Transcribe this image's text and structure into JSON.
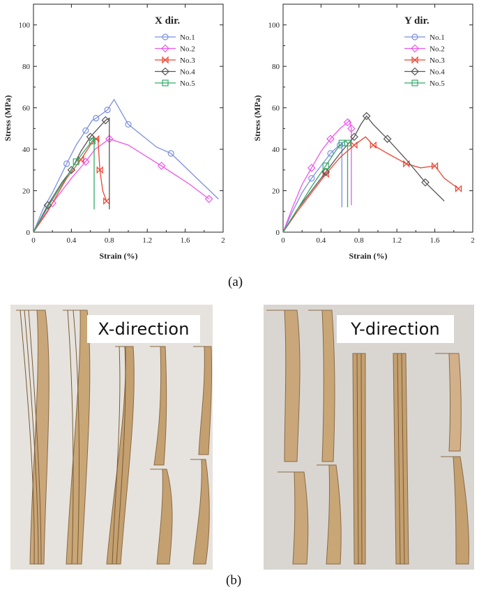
{
  "figure": {
    "caption_a": "(a)",
    "caption_b": "(b)"
  },
  "colors": {
    "No.1": "#7b8fe0",
    "No.2": "#ee55ee",
    "No.3": "#ee4433",
    "No.4": "#555555",
    "No.5": "#33aa66"
  },
  "chart_data": [
    {
      "type": "line",
      "title": "X dir.",
      "xlabel": "Strain (%)",
      "ylabel": "Stress (MPa)",
      "xlim": [
        0,
        2.0
      ],
      "ylim": [
        0,
        110
      ],
      "xticks": [
        "0",
        "0.4",
        "0.8",
        "1.2",
        "1.6",
        "2"
      ],
      "yticks": [
        "0",
        "20",
        "40",
        "60",
        "80",
        "100"
      ],
      "legend_position": "top-right",
      "series": [
        {
          "name": "No.1",
          "marker": "circle",
          "x": [
            0,
            0.1,
            0.2,
            0.35,
            0.45,
            0.55,
            0.62,
            0.66,
            0.75,
            0.78,
            0.85,
            1.0,
            1.3,
            1.45,
            1.95
          ],
          "y": [
            0,
            11,
            19,
            33,
            42,
            49,
            54,
            55,
            58,
            59,
            64,
            52,
            41,
            38,
            16
          ]
        },
        {
          "name": "No.2",
          "marker": "diamond",
          "x": [
            0,
            0.2,
            0.4,
            0.55,
            0.65,
            0.8,
            1.0,
            1.35,
            1.65,
            1.85
          ],
          "y": [
            0,
            14,
            26,
            34,
            40,
            45,
            42,
            32,
            23,
            16
          ]
        },
        {
          "name": "No.3",
          "marker": "bowtie",
          "x": [
            0,
            0.15,
            0.35,
            0.5,
            0.6,
            0.66,
            0.68,
            0.7,
            0.73,
            0.77
          ],
          "y": [
            0,
            10,
            26,
            35,
            42,
            45,
            45,
            30,
            20,
            15
          ]
        },
        {
          "name": "No.4",
          "marker": "diamond",
          "x": [
            0,
            0.15,
            0.3,
            0.4,
            0.5,
            0.6,
            0.7,
            0.76,
            0.8,
            0.8
          ],
          "y": [
            0,
            13,
            24,
            30,
            39,
            46,
            51,
            54,
            55,
            11
          ]
        },
        {
          "name": "No.5",
          "marker": "square",
          "x": [
            0,
            0.15,
            0.3,
            0.45,
            0.55,
            0.62,
            0.64,
            0.64
          ],
          "y": [
            0,
            12,
            23,
            34,
            40,
            44,
            45,
            11
          ]
        }
      ]
    },
    {
      "type": "line",
      "title": "Y dir.",
      "xlabel": "Strain (%)",
      "ylabel": "Stress (MPa)",
      "xlim": [
        0,
        2.0
      ],
      "ylim": [
        0,
        110
      ],
      "xticks": [
        "0",
        "0.4",
        "0.8",
        "1.2",
        "1.6",
        "2"
      ],
      "yticks": [
        "0",
        "20",
        "40",
        "60",
        "80",
        "100"
      ],
      "legend_position": "top-right",
      "series": [
        {
          "name": "No.1",
          "marker": "circle",
          "x": [
            0,
            0.1,
            0.2,
            0.3,
            0.4,
            0.5,
            0.57,
            0.6,
            0.62,
            0.62
          ],
          "y": [
            0,
            10,
            19,
            26,
            32,
            38,
            41,
            42,
            43,
            12
          ]
        },
        {
          "name": "No.2",
          "marker": "diamond",
          "x": [
            0,
            0.1,
            0.2,
            0.3,
            0.4,
            0.5,
            0.6,
            0.68,
            0.7,
            0.72,
            0.72
          ],
          "y": [
            0,
            12,
            23,
            31,
            39,
            45,
            50,
            53,
            54,
            50,
            13
          ]
        },
        {
          "name": "No.3",
          "marker": "bowtie",
          "x": [
            0,
            0.15,
            0.3,
            0.45,
            0.6,
            0.75,
            0.87,
            0.95,
            1.1,
            1.3,
            1.45,
            1.6,
            1.7,
            1.85
          ],
          "y": [
            0,
            10,
            19,
            28,
            36,
            42,
            46,
            42,
            38,
            33,
            31,
            32,
            26,
            21
          ]
        },
        {
          "name": "No.4",
          "marker": "diamond",
          "x": [
            0,
            0.15,
            0.3,
            0.45,
            0.6,
            0.75,
            0.82,
            0.88,
            0.95,
            1.1,
            1.3,
            1.5,
            1.7
          ],
          "y": [
            0,
            11,
            20,
            29,
            38,
            46,
            52,
            56,
            52,
            45,
            35,
            24,
            15
          ]
        },
        {
          "name": "No.5",
          "marker": "square",
          "x": [
            0,
            0.15,
            0.3,
            0.45,
            0.55,
            0.62,
            0.66,
            0.68,
            0.68
          ],
          "y": [
            0,
            11,
            22,
            32,
            39,
            43,
            44,
            43,
            12
          ]
        }
      ]
    }
  ],
  "photos": [
    {
      "label": "X-direction",
      "specimens": [
        "intact-bent",
        "intact-bent",
        "intact-bent",
        "fractured-middle",
        "fractured-middle"
      ]
    },
    {
      "label": "Y-direction",
      "specimens": [
        "fractured-middle",
        "fractured-middle",
        "intact-straight",
        "intact-straight",
        "fractured-middle"
      ]
    }
  ]
}
